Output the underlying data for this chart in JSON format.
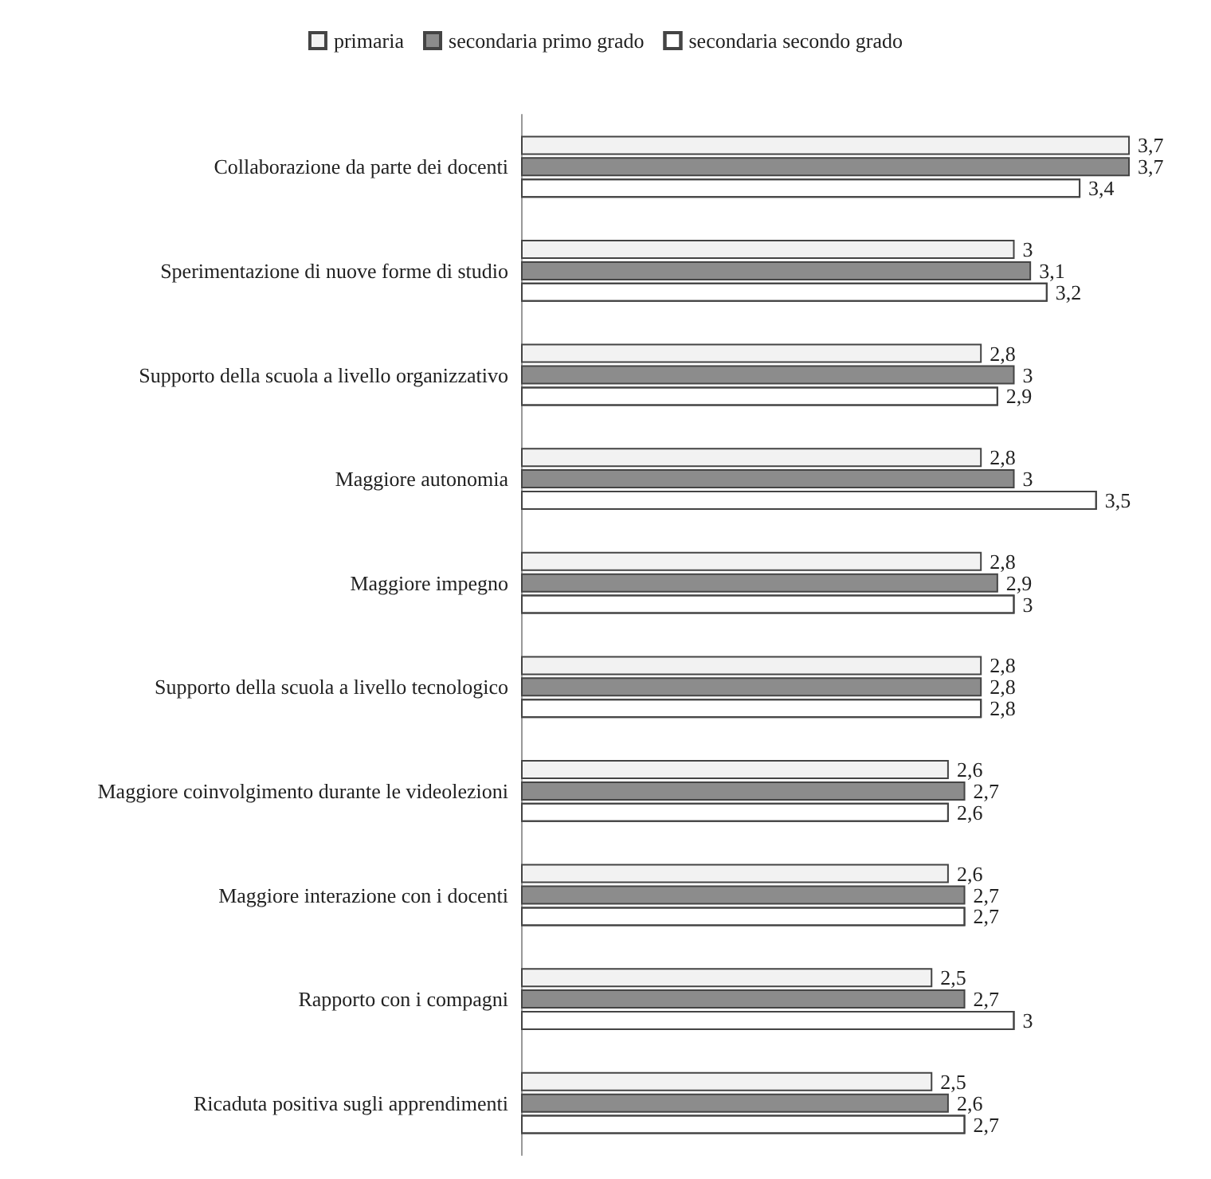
{
  "chart_data": {
    "type": "bar",
    "orientation": "horizontal",
    "legend": "top",
    "categories": [
      "Collaborazione da parte dei docenti",
      "Sperimentazione di nuove forme di studio",
      "Supporto della scuola a livello organizzativo",
      "Maggiore autonomia",
      "Maggiore impegno",
      "Supporto della scuola a livello tecnologico",
      "Maggiore coinvolgimento durante le videolezioni",
      "Maggiore interazione con i docenti",
      "Rapporto con i compagni",
      "Ricaduta positiva sugli apprendimenti"
    ],
    "series": [
      {
        "name": "primaria",
        "color": "#f2f2f2",
        "values": [
          3.7,
          3,
          2.8,
          2.8,
          2.8,
          2.8,
          2.6,
          2.6,
          2.5,
          2.5
        ],
        "value_labels": [
          "3,7",
          "3",
          "2,8",
          "2,8",
          "2,8",
          "2,8",
          "2,6",
          "2,6",
          "2,5",
          "2,5"
        ]
      },
      {
        "name": "secondaria primo grado",
        "color": "#8c8c8c",
        "values": [
          3.7,
          3.1,
          3,
          3,
          2.9,
          2.8,
          2.7,
          2.7,
          2.7,
          2.6
        ],
        "value_labels": [
          "3,7",
          "3,1",
          "3",
          "3",
          "2,9",
          "2,8",
          "2,7",
          "2,7",
          "2,7",
          "2,6"
        ]
      },
      {
        "name": "secondaria secondo grado",
        "color": "#ffffff",
        "values": [
          3.4,
          3.2,
          2.9,
          3.5,
          3,
          2.8,
          2.6,
          2.7,
          3,
          2.7
        ],
        "value_labels": [
          "3,4",
          "3,2",
          "2,9",
          "3,5",
          "3",
          "2,8",
          "2,6",
          "2,7",
          "3",
          "2,7"
        ]
      }
    ]
  }
}
